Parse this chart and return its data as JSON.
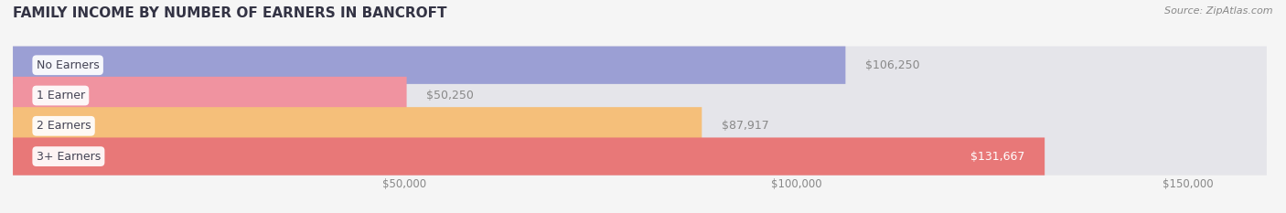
{
  "title": "FAMILY INCOME BY NUMBER OF EARNERS IN BANCROFT",
  "source": "Source: ZipAtlas.com",
  "categories": [
    "No Earners",
    "1 Earner",
    "2 Earners",
    "3+ Earners"
  ],
  "values": [
    106250,
    50250,
    87917,
    131667
  ],
  "bar_colors": [
    "#9b9fd4",
    "#f093a0",
    "#f5bf7a",
    "#e87878"
  ],
  "background_color": "#f5f5f5",
  "bar_bg_color": "#e5e5ea",
  "xmin": 0,
  "xmax": 160000,
  "x_ticks": [
    50000,
    100000,
    150000
  ],
  "x_tick_labels": [
    "$50,000",
    "$100,000",
    "$150,000"
  ],
  "title_fontsize": 11,
  "bar_label_fontsize": 9,
  "tick_fontsize": 8.5,
  "source_fontsize": 8,
  "category_fontsize": 9
}
